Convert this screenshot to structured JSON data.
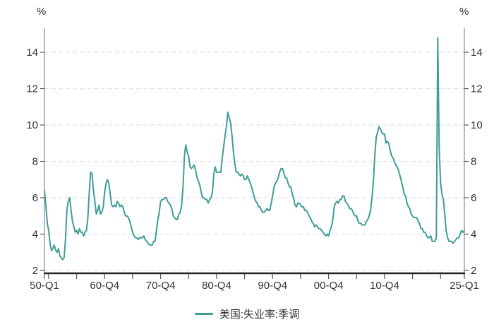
{
  "chart_data": {
    "type": "line",
    "title": "",
    "legend": "美国:失业率:季调",
    "grid": {
      "show": true,
      "style": "dashed"
    },
    "y_axis": {
      "unit": "%",
      "ticks": [
        2,
        4,
        6,
        8,
        10,
        12,
        14
      ],
      "min": 2,
      "max_visible": 15.3,
      "mirrored_right": true
    },
    "x_axis": {
      "labels": [
        {
          "text": "50-Q1",
          "t": 1950.0
        },
        {
          "text": "60-Q4",
          "t": 1960.75
        },
        {
          "text": "70-Q4",
          "t": 1970.75
        },
        {
          "text": "80-Q4",
          "t": 1980.75
        },
        {
          "text": "90-Q4",
          "t": 1990.75
        },
        {
          "text": "00-Q4",
          "t": 2000.75
        },
        {
          "text": "10-Q4",
          "t": 2010.75
        },
        {
          "text": "25-Q1",
          "t": 2025.0
        }
      ],
      "ticks": [
        1950.0,
        1950.75,
        1955.75,
        1960.75,
        1965.75,
        1970.75,
        1975.75,
        1980.75,
        1985.75,
        1990.75,
        1995.75,
        2000.75,
        2005.75,
        2010.75,
        2015.75,
        2020.75,
        2025.0
      ],
      "range": [
        1950.0,
        2025.0
      ]
    },
    "series": [
      {
        "name": "美国:失业率:季调",
        "color": "#3e9d99",
        "x_start": 1950.0,
        "x_step": 0.25,
        "values": [
          6.4,
          5.6,
          4.6,
          4.2,
          3.5,
          3.1,
          3.2,
          3.4,
          3.1,
          3.0,
          3.2,
          2.8,
          2.7,
          2.6,
          2.7,
          3.7,
          5.3,
          5.8,
          6.0,
          5.3,
          4.7,
          4.4,
          4.1,
          4.2,
          4.0,
          4.3,
          4.1,
          4.1,
          3.9,
          4.1,
          4.2,
          4.9,
          6.3,
          7.4,
          7.3,
          6.4,
          5.8,
          5.1,
          5.3,
          5.6,
          5.1,
          5.2,
          5.5,
          6.3,
          6.8,
          7.0,
          6.8,
          6.2,
          5.6,
          5.5,
          5.6,
          5.5,
          5.8,
          5.7,
          5.5,
          5.6,
          5.5,
          5.2,
          5.0,
          5.0,
          4.9,
          4.7,
          4.4,
          4.1,
          3.9,
          3.8,
          3.8,
          3.7,
          3.8,
          3.8,
          3.8,
          3.9,
          3.7,
          3.6,
          3.5,
          3.4,
          3.4,
          3.4,
          3.6,
          3.6,
          4.2,
          4.8,
          5.2,
          5.8,
          5.9,
          5.9,
          6.0,
          6.0,
          5.8,
          5.7,
          5.6,
          5.4,
          5.0,
          4.9,
          4.8,
          4.8,
          5.1,
          5.2,
          5.6,
          6.6,
          8.3,
          8.9,
          8.5,
          8.3,
          7.7,
          7.6,
          7.7,
          7.8,
          7.5,
          7.1,
          6.9,
          6.7,
          6.3,
          6.0,
          6.0,
          5.9,
          5.9,
          5.7,
          5.9,
          6.0,
          6.3,
          7.3,
          7.7,
          7.4,
          7.4,
          7.4,
          7.4,
          8.2,
          8.8,
          9.4,
          9.9,
          10.7,
          10.4,
          10.1,
          9.4,
          8.5,
          7.9,
          7.4,
          7.4,
          7.3,
          7.2,
          7.3,
          7.2,
          7.0,
          7.0,
          7.2,
          7.0,
          6.8,
          6.6,
          6.3,
          6.0,
          5.8,
          5.7,
          5.5,
          5.5,
          5.3,
          5.2,
          5.2,
          5.3,
          5.4,
          5.3,
          5.3,
          5.7,
          6.1,
          6.6,
          6.8,
          6.9,
          7.1,
          7.4,
          7.6,
          7.6,
          7.4,
          7.1,
          7.1,
          6.8,
          6.6,
          6.6,
          6.2,
          6.0,
          5.6,
          5.5,
          5.7,
          5.7,
          5.6,
          5.5,
          5.5,
          5.3,
          5.3,
          5.2,
          5.0,
          4.9,
          4.7,
          4.6,
          4.4,
          4.5,
          4.4,
          4.3,
          4.3,
          4.2,
          4.1,
          4.0,
          3.9,
          4.0,
          3.9,
          4.2,
          4.4,
          4.8,
          5.5,
          5.7,
          5.8,
          5.7,
          5.9,
          5.9,
          6.1,
          6.1,
          5.8,
          5.7,
          5.6,
          5.4,
          5.4,
          5.3,
          5.1,
          5.0,
          5.0,
          4.7,
          4.6,
          4.6,
          4.5,
          4.5,
          4.5,
          4.7,
          4.8,
          5.0,
          5.3,
          6.0,
          6.9,
          8.3,
          9.3,
          9.6,
          9.9,
          9.8,
          9.6,
          9.5,
          9.5,
          9.0,
          9.1,
          9.0,
          8.6,
          8.3,
          8.2,
          8.0,
          7.8,
          7.7,
          7.5,
          7.2,
          6.9,
          6.6,
          6.2,
          6.1,
          5.7,
          5.5,
          5.4,
          5.1,
          5.0,
          4.9,
          4.9,
          4.9,
          4.7,
          4.6,
          4.3,
          4.3,
          4.1,
          4.1,
          3.9,
          3.8,
          3.8,
          3.9,
          3.6,
          3.6,
          3.6,
          3.8,
          14.8,
          8.8,
          6.8,
          6.2,
          5.9,
          5.1,
          4.2,
          3.8,
          3.6,
          3.6,
          3.6,
          3.5,
          3.6,
          3.7,
          3.8,
          3.8,
          4.0,
          4.2,
          4.1,
          4.2
        ]
      }
    ]
  },
  "colors": {
    "line": "#3e9d99",
    "grid": "#e2e2e2",
    "axis_side": "#8a8a8a",
    "axis_bottom": "#262626",
    "tick": "#555555",
    "text": "#333333"
  }
}
